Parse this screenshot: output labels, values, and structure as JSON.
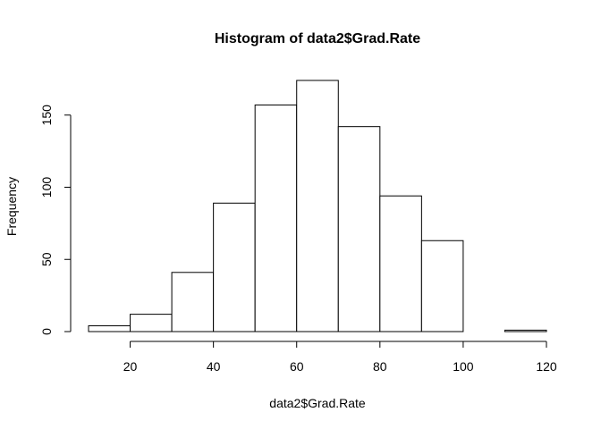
{
  "chart_data": {
    "type": "bar",
    "title": "Histogram of data2$Grad.Rate",
    "xlabel": "data2$Grad.Rate",
    "ylabel": "Frequency",
    "bins": [
      {
        "from": 10,
        "to": 20,
        "count": 4
      },
      {
        "from": 20,
        "to": 30,
        "count": 12
      },
      {
        "from": 30,
        "to": 40,
        "count": 41
      },
      {
        "from": 40,
        "to": 50,
        "count": 89
      },
      {
        "from": 50,
        "to": 60,
        "count": 157
      },
      {
        "from": 60,
        "to": 70,
        "count": 174
      },
      {
        "from": 70,
        "to": 80,
        "count": 142
      },
      {
        "from": 80,
        "to": 90,
        "count": 94
      },
      {
        "from": 90,
        "to": 100,
        "count": 63
      },
      {
        "from": 100,
        "to": 110,
        "count": 0
      },
      {
        "from": 110,
        "to": 120,
        "count": 1
      }
    ],
    "xlim": [
      10,
      120
    ],
    "ylim": [
      0,
      174
    ],
    "x_ticks": [
      20,
      40,
      60,
      80,
      100,
      120
    ],
    "y_ticks": [
      0,
      50,
      100,
      150
    ],
    "x_tick_labels": [
      "20",
      "40",
      "60",
      "80",
      "100",
      "120"
    ],
    "y_tick_labels": [
      "0",
      "50",
      "100",
      "150"
    ],
    "grid": false,
    "legend": "none",
    "colors": {
      "bar_fill": "#ffffff",
      "bar_stroke": "#000000"
    }
  }
}
